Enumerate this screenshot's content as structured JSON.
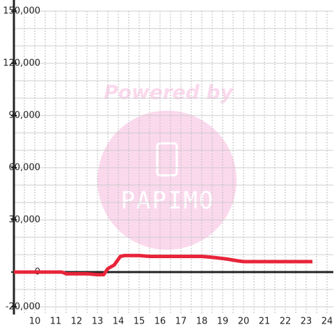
{
  "chart_data": {
    "type": "line",
    "watermark": {
      "top": "Powered by",
      "logo": "PAPIMO"
    },
    "x": [
      9,
      11.3,
      11.5,
      12.5,
      13,
      13.3,
      13.5,
      13.8,
      14.1,
      14.3,
      15,
      15.5,
      18,
      18.5,
      19.2,
      19.7,
      20,
      23.3
    ],
    "series": [
      {
        "color": "#e8253a",
        "values": [
          0,
          0,
          -1000,
          -1000,
          -1500,
          -1500,
          2000,
          4000,
          9000,
          9500,
          9500,
          9000,
          9000,
          8500,
          7500,
          6500,
          6000,
          6000
        ]
      }
    ],
    "xlim": [
      9,
      24.3
    ],
    "ylim": [
      -20000,
      150000
    ],
    "xticks": [
      10,
      11,
      12,
      13,
      14,
      15,
      16,
      17,
      18,
      19,
      20,
      21,
      22,
      23,
      24
    ],
    "yticks": [
      {
        "value": -20000,
        "label": "-20,000"
      },
      0,
      {
        "value": 30000,
        "label": "30,000"
      },
      {
        "value": 60000,
        "label": "60,000"
      },
      {
        "value": 90000,
        "label": "90,000"
      },
      {
        "value": 120000,
        "label": "120,000"
      },
      {
        "value": 150000,
        "label": "150,000"
      }
    ],
    "ygrid": [
      -10000,
      10000,
      20000,
      40000,
      50000,
      70000,
      80000,
      100000,
      110000,
      130000,
      140000
    ],
    "xgrid": [
      9.5,
      10.5,
      11.5,
      12.5,
      13.5,
      14.5,
      15.5,
      16.5,
      17.5,
      18.5,
      19.5,
      20.5,
      21.5,
      22.5,
      23.5
    ]
  }
}
